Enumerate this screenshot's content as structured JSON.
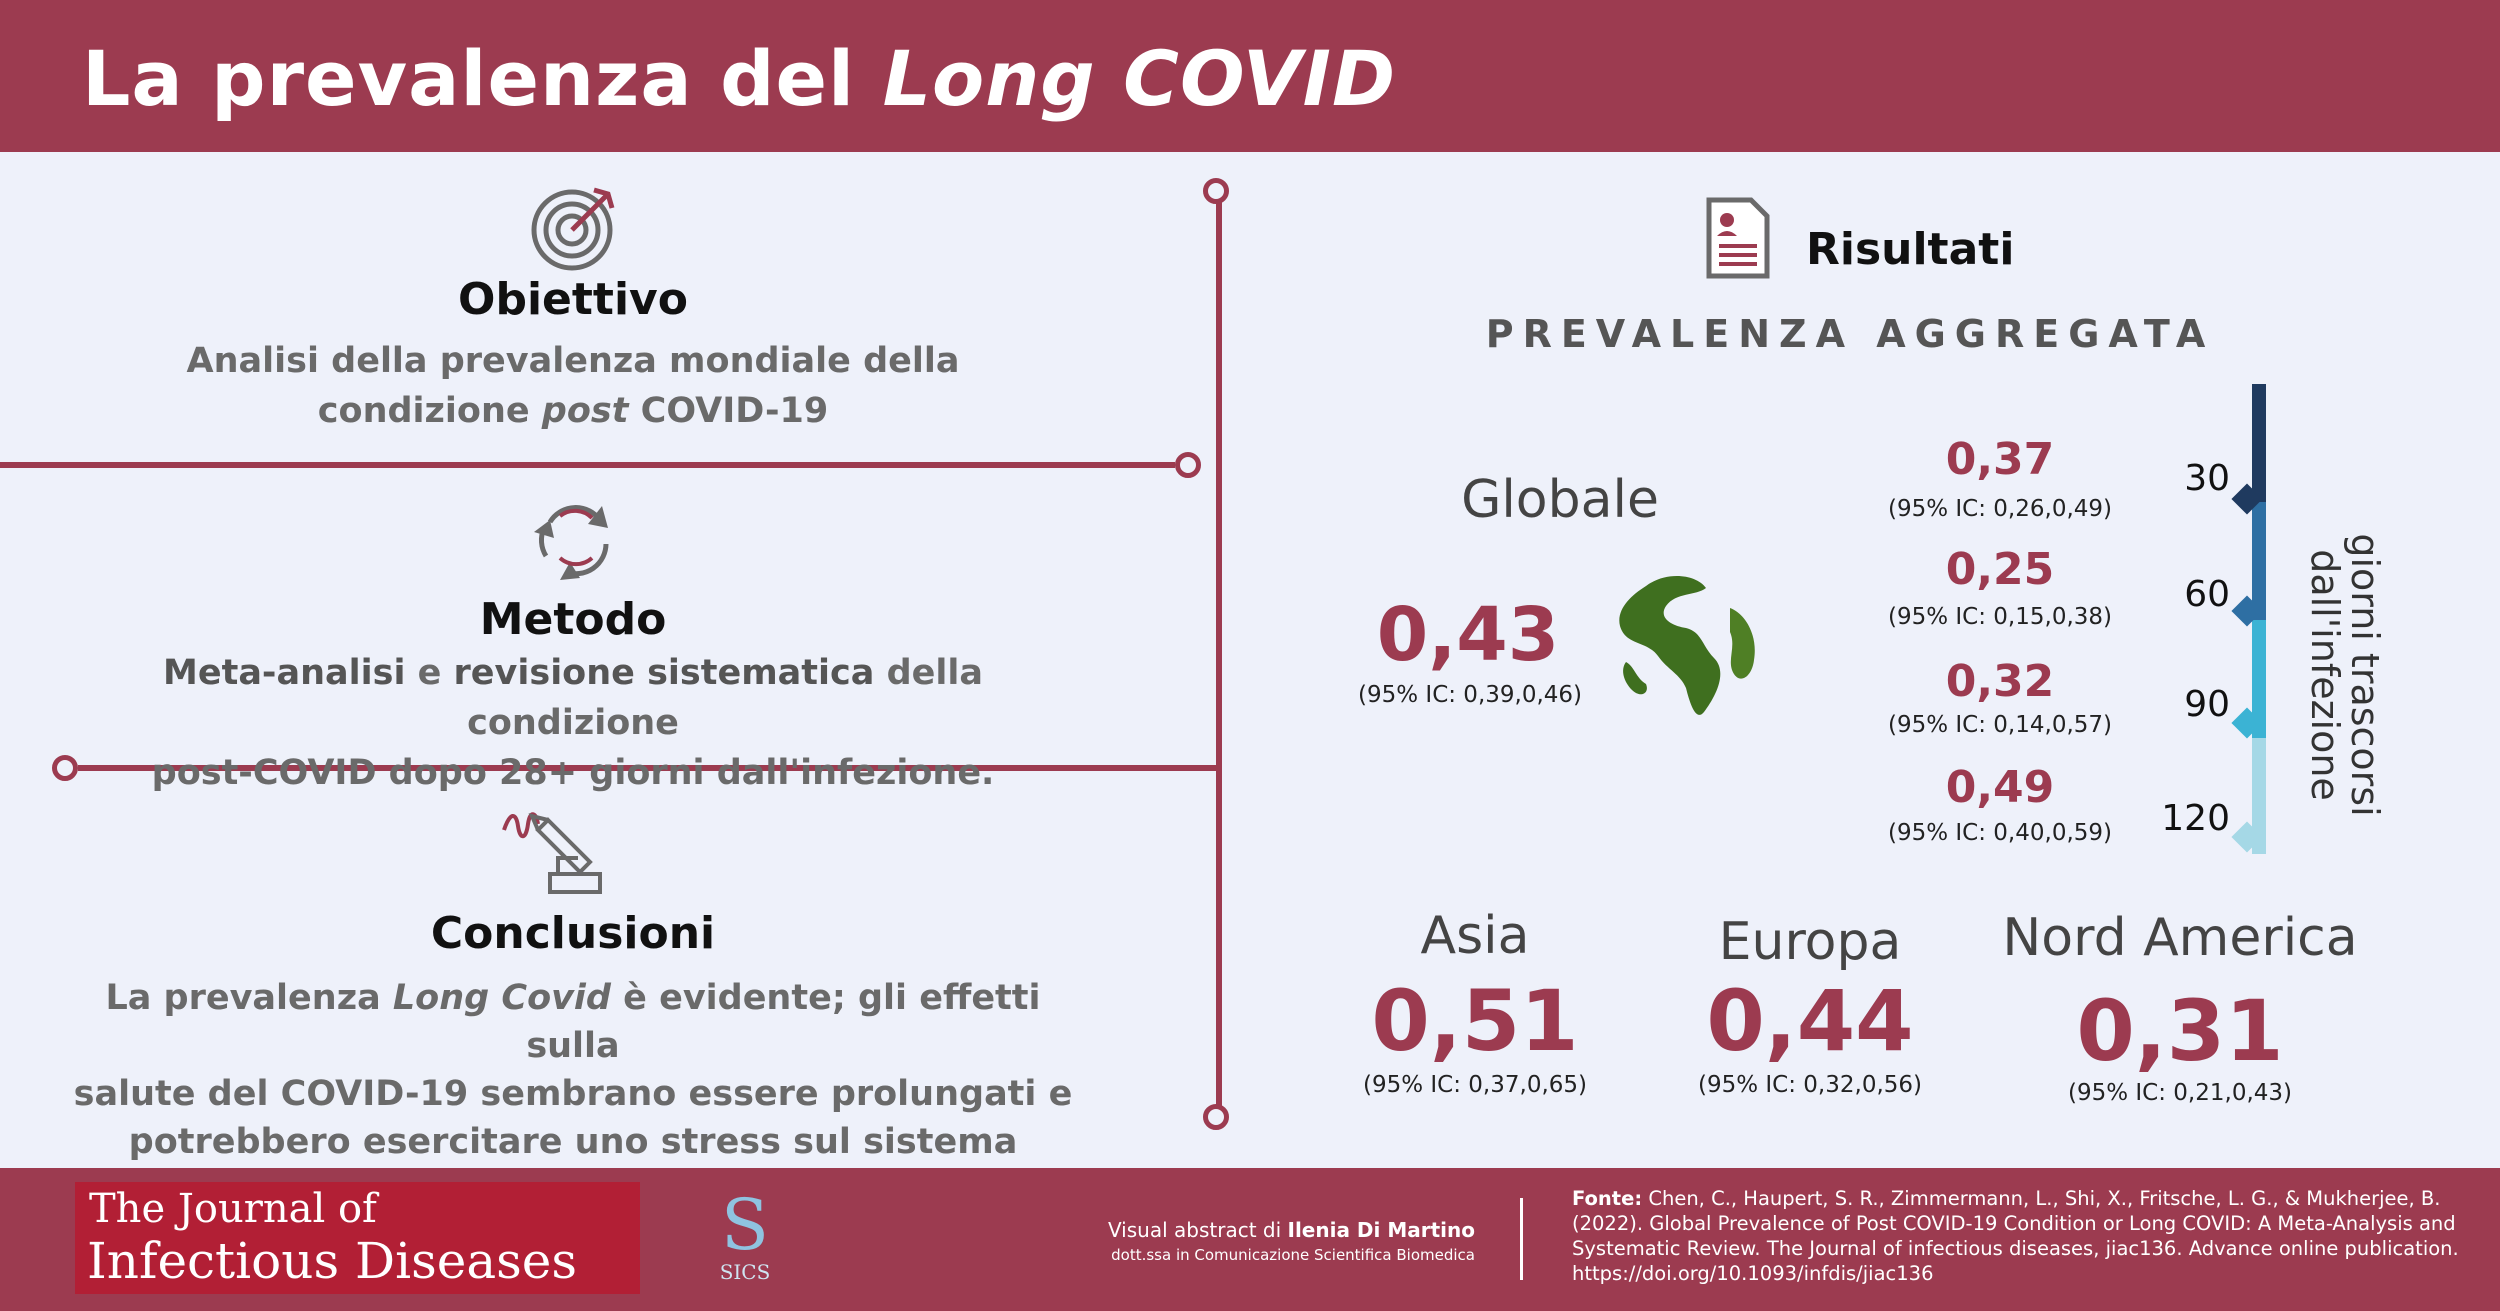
{
  "header": {
    "title_prefix": "La prevalenza del ",
    "title_italic": "Long COVID"
  },
  "left": {
    "obiettivo": {
      "title": "Obiettivo",
      "line1": "Analisi della prevalenza mondiale della",
      "line2_pre": "condizione ",
      "line2_italic": "post",
      "line2_post": " COVID-19",
      "icon": "target-icon"
    },
    "metodo": {
      "title": "Metodo",
      "l1_b1": "Meta-analisi",
      "l1_t1": " e ",
      "l1_b2": "revisione sistematica",
      "l1_t2": " della condizione",
      "line2": "post-COVID dopo 28+ giorni dall'infezione.",
      "icon": "cycle-icon"
    },
    "conclusioni": {
      "title": "Conclusioni",
      "l1_pre": "La prevalenza ",
      "l1_italic": "Long Covid",
      "l1_post": " è evidente; gli effetti sulla",
      "line2": "salute del COVID-19 sembrano essere prolungati e",
      "line3": "potrebbero esercitare uno stress sul sistema sanitario",
      "icon": "pen-hand-icon"
    }
  },
  "right": {
    "results_title": "Risultati",
    "subtitle": "PREVALENZA AGGREGATA",
    "global": {
      "label": "Globale",
      "value": "0,43",
      "ci": "(95% IC: 0,39,0,46)"
    },
    "days_label_1": "giorni trascorsi",
    "days_label_2": "dall'infezione",
    "days": [
      {
        "day": "30",
        "value": "0,37",
        "ci": "(95% IC: 0,26,0,49)",
        "color": "#1f3a5f"
      },
      {
        "day": "60",
        "value": "0,25",
        "ci": "(95% IC: 0,15,0,38)",
        "color": "#2e6fa3"
      },
      {
        "day": "90",
        "value": "0,32",
        "ci": "(95% IC: 0,14,0,57)",
        "color": "#3bb3d4"
      },
      {
        "day": "120",
        "value": "0,49",
        "ci": "(95% IC: 0,40,0,59)",
        "color": "#a5d8e6"
      }
    ],
    "regions": [
      {
        "name": "Asia",
        "value": "0,51",
        "ci": "(95% IC: 0,37,0,65)"
      },
      {
        "name": "Europa",
        "value": "0,44",
        "ci": "(95% IC: 0,32,0,56)"
      },
      {
        "name": "Nord America",
        "value": "0,31",
        "ci": "(95% IC: 0,21,0,43)"
      }
    ]
  },
  "footer": {
    "journal_line1": "The Journal of",
    "journal_line2": "Infectious Diseases",
    "sics_letter": "S",
    "sics_text": "SICS",
    "credit_pre": "Visual abstract di ",
    "credit_name": "Ilenia Di Martino",
    "credit_role": "dott.ssa in Comunicazione Scientifica Biomedica",
    "source_label": "Fonte:",
    "source_l1": " Chen, C., Haupert, S. R., Zimmermann, L., Shi, X., Fritsche, L. G., & Mukherjee, B.",
    "source_l2": "(2022). Global Prevalence of Post COVID-19 Condition or Long COVID: A Meta-Analysis and",
    "source_l3": "Systematic Review. The Journal of infectious diseases, jiac136. Advance online publication.",
    "source_l4": "https://doi.org/10.1093/infdis/jiac136"
  },
  "colors": {
    "accent": "#9c3b50",
    "background": "#eef1fa",
    "globe": "#3f6f1f"
  }
}
